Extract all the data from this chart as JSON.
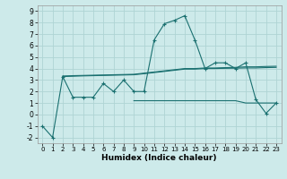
{
  "xlabel": "Humidex (Indice chaleur)",
  "background_color": "#cdeaea",
  "grid_color": "#afd4d4",
  "line_color": "#1a7070",
  "xlim": [
    -0.5,
    23.5
  ],
  "ylim": [
    -2.5,
    9.5
  ],
  "xticks": [
    0,
    1,
    2,
    3,
    4,
    5,
    6,
    7,
    8,
    9,
    10,
    11,
    12,
    13,
    14,
    15,
    16,
    17,
    18,
    19,
    20,
    21,
    22,
    23
  ],
  "yticks": [
    -2,
    -1,
    0,
    1,
    2,
    3,
    4,
    5,
    6,
    7,
    8,
    9
  ],
  "series1_x": [
    0,
    1,
    2,
    3,
    4,
    5,
    6,
    7,
    8,
    9,
    10,
    11,
    12,
    13,
    14,
    15,
    16,
    17,
    18,
    19,
    20,
    21,
    22,
    23
  ],
  "series1_y": [
    -1,
    -2,
    3.3,
    1.5,
    1.5,
    1.5,
    2.7,
    2.0,
    3.0,
    2.0,
    2.0,
    6.5,
    7.9,
    8.2,
    8.6,
    6.5,
    4.0,
    4.5,
    4.5,
    4.0,
    4.5,
    1.3,
    0.1,
    1.0
  ],
  "series2_x": [
    2,
    3,
    4,
    5,
    6,
    7,
    8,
    9,
    10,
    11,
    12,
    13,
    14,
    15,
    16,
    17,
    18,
    19,
    20,
    21,
    22,
    23
  ],
  "series2_y": [
    3.35,
    3.38,
    3.4,
    3.42,
    3.44,
    3.46,
    3.48,
    3.5,
    3.6,
    3.7,
    3.8,
    3.9,
    4.0,
    4.0,
    4.05,
    4.05,
    4.08,
    4.1,
    4.15,
    4.15,
    4.18,
    4.2
  ],
  "series3_x": [
    2,
    3,
    4,
    5,
    6,
    7,
    8,
    9,
    10,
    11,
    12,
    13,
    14,
    15,
    16,
    17,
    18,
    19,
    20,
    21,
    22,
    23
  ],
  "series3_y": [
    3.3,
    3.33,
    3.36,
    3.38,
    3.4,
    3.42,
    3.44,
    3.46,
    3.55,
    3.65,
    3.75,
    3.85,
    3.95,
    3.95,
    4.0,
    4.0,
    4.02,
    4.03,
    4.05,
    4.05,
    4.08,
    4.1
  ],
  "series4_x": [
    9,
    10,
    11,
    12,
    13,
    14,
    15,
    16,
    17,
    18,
    19,
    20,
    21,
    22,
    23
  ],
  "series4_y": [
    1.2,
    1.2,
    1.2,
    1.2,
    1.2,
    1.2,
    1.2,
    1.2,
    1.2,
    1.2,
    1.2,
    1.0,
    1.0,
    1.0,
    1.0
  ]
}
